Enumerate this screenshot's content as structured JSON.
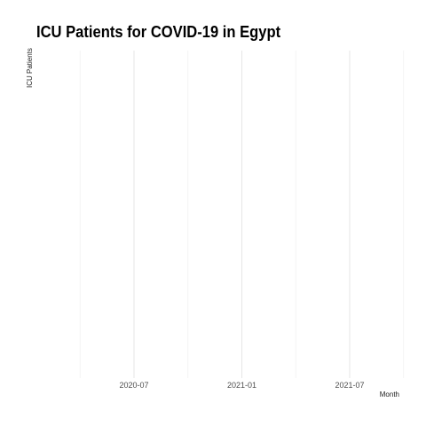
{
  "chart_data": {
    "type": "line",
    "title": "ICU Patients for COVID-19 in Egypt",
    "xlabel": "Month",
    "ylabel": "ICU Patients",
    "x_ticks": [
      "2020-07",
      "2021-01",
      "2021-07"
    ],
    "xlim": [
      "2020-04",
      "2021-10"
    ],
    "series": [],
    "grid": true
  }
}
